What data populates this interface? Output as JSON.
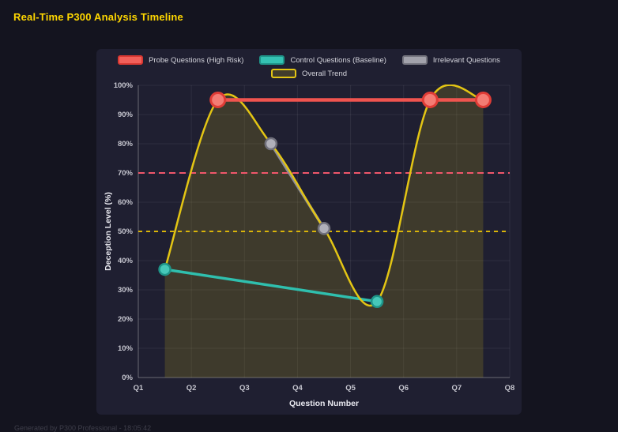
{
  "page": {
    "title": "Real-Time P300 Analysis Timeline",
    "footer": "Generated by P300 Professional - 18:05:42"
  },
  "chart_data": {
    "type": "line",
    "title": "Real-Time P300 Analysis Timeline",
    "xlabel": "Question Number",
    "ylabel": "Deception Level (%)",
    "x_ticks": [
      "Q1",
      "Q2",
      "Q3",
      "Q4",
      "Q5",
      "Q6",
      "Q7",
      "Q8"
    ],
    "x_range": [
      1,
      8
    ],
    "ylim": [
      0,
      100
    ],
    "y_tick_step": 10,
    "y_tick_suffix": "%",
    "grid": true,
    "legend_position": "top",
    "legend": [
      {
        "label": "Probe Questions (High Risk)",
        "fill": "#f2605a",
        "border": "#d93832"
      },
      {
        "label": "Control Questions (Baseline)",
        "fill": "#35c2b3",
        "border": "#1f9489"
      },
      {
        "label": "Irrelevant Questions",
        "fill": "#a2a2ab",
        "border": "#75757f"
      },
      {
        "label": "Overall Trend",
        "fill": "rgba(227,197,20,0.18)",
        "border": "#e3c514"
      }
    ],
    "series": [
      {
        "name": "Control Questions (Baseline)",
        "type": "line",
        "color": "#2fbfae",
        "line_width": 3.5,
        "point_radius": 7,
        "point_fill": "#46c8b9",
        "point_stroke": "#1e9488",
        "point_stroke_width": 2.5,
        "points": [
          {
            "x": 1.5,
            "y": 37
          },
          {
            "x": 5.5,
            "y": 26
          }
        ]
      },
      {
        "name": "Irrelevant Questions",
        "type": "line",
        "color": "#8e8e99",
        "line_width": 3.5,
        "point_radius": 7,
        "point_fill": "#b0b0ba",
        "point_stroke": "#70707c",
        "point_stroke_width": 2.5,
        "points": [
          {
            "x": 3.5,
            "y": 80
          },
          {
            "x": 4.5,
            "y": 51
          }
        ]
      },
      {
        "name": "Overall Trend",
        "type": "spline",
        "color": "#e3c514",
        "line_width": 2.5,
        "fill": "rgba(227,197,20,0.16)",
        "point_radius": 0,
        "points": [
          {
            "x": 1.5,
            "y": 37
          },
          {
            "x": 2.5,
            "y": 95
          },
          {
            "x": 3.5,
            "y": 80
          },
          {
            "x": 4.5,
            "y": 51
          },
          {
            "x": 5.5,
            "y": 26
          },
          {
            "x": 6.5,
            "y": 95
          },
          {
            "x": 7.5,
            "y": 95
          }
        ]
      },
      {
        "name": "Probe Questions (High Risk)",
        "type": "line",
        "color": "#f0544f",
        "line_width": 4.5,
        "point_radius": 9,
        "point_fill": "#f47c74",
        "point_stroke": "#e03c36",
        "point_stroke_width": 3,
        "points": [
          {
            "x": 2.5,
            "y": 95
          },
          {
            "x": 6.5,
            "y": 95
          },
          {
            "x": 7.5,
            "y": 95
          }
        ]
      }
    ],
    "reference_lines": [
      {
        "y": 70,
        "color": "#f0566b",
        "dash": "8 5"
      },
      {
        "y": 50,
        "color": "#d9b40a",
        "dash": "5 5"
      }
    ]
  }
}
